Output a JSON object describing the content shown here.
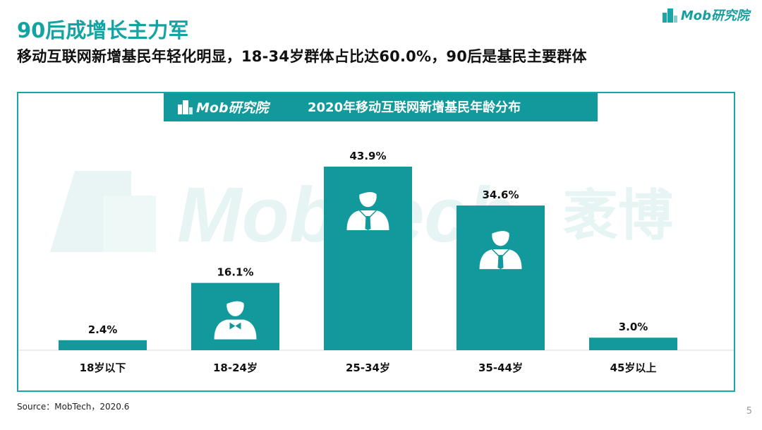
{
  "brand": {
    "logo_text": "Mob研究院"
  },
  "title": "90后成增长主力军",
  "subtitle": "移动互联网新增基民年轻化明显，18-34岁群体占比达60.0%，90后是基民主要群体",
  "panel": {
    "logo_text": "Mob研究院",
    "chart_title": "2020年移动互联网新增基民年龄分布"
  },
  "watermark": {
    "latin": "MobTech",
    "cjk": "袤博"
  },
  "chart_data": {
    "type": "bar",
    "title": "2020年移动互联网新增基民年龄分布",
    "categories": [
      "18岁以下",
      "18-24岁",
      "25-34岁",
      "35-44岁",
      "45岁以上"
    ],
    "values": [
      2.4,
      16.1,
      43.9,
      34.6,
      3.0
    ],
    "value_labels": [
      "2.4%",
      "16.1%",
      "43.9%",
      "34.6%",
      "3.0%"
    ],
    "unit": "%",
    "ylim": [
      0,
      43.9
    ],
    "grid": false,
    "legend": "none",
    "bar_color": "#11999b",
    "bar_icons": [
      "",
      "person-bowtie-icon",
      "person-suit-icon",
      "person-suit-icon",
      ""
    ]
  },
  "source": "Source：MobTech，2020.6",
  "page_number": "5",
  "colors": {
    "accent": "#13a3a3",
    "bar": "#11999b",
    "watermark": "#e4f3f2"
  }
}
